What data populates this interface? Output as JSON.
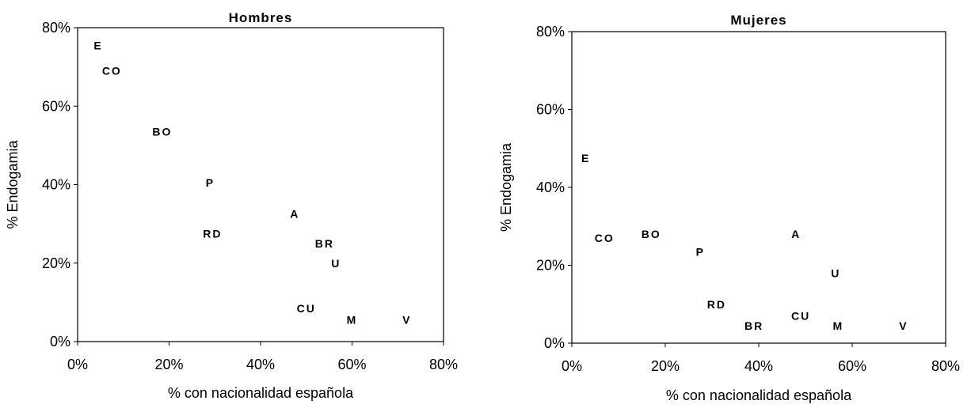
{
  "chart_data": [
    {
      "type": "scatter",
      "title": "Hombres",
      "xlabel": "% con nacionalidad española",
      "ylabel": "% Endogamia",
      "xlim": [
        0,
        80
      ],
      "ylim": [
        0,
        80
      ],
      "xticks": [
        "0%",
        "20%",
        "40%",
        "60%",
        "80%"
      ],
      "yticks": [
        "0%",
        "20%",
        "40%",
        "60%",
        "80%"
      ],
      "grid": false,
      "points": [
        {
          "label": "E",
          "x": 4.5,
          "y": 75.5
        },
        {
          "label": "CO",
          "x": 7.5,
          "y": 69
        },
        {
          "label": "BO",
          "x": 18.5,
          "y": 53.5
        },
        {
          "label": "P",
          "x": 29,
          "y": 40.5
        },
        {
          "label": "A",
          "x": 47.5,
          "y": 32.5
        },
        {
          "label": "RD",
          "x": 29.5,
          "y": 27.5
        },
        {
          "label": "BR",
          "x": 54,
          "y": 25
        },
        {
          "label": "U",
          "x": 56.5,
          "y": 20
        },
        {
          "label": "CU",
          "x": 50,
          "y": 8.5
        },
        {
          "label": "M",
          "x": 60,
          "y": 5.5
        },
        {
          "label": "V",
          "x": 72,
          "y": 5.5
        }
      ]
    },
    {
      "type": "scatter",
      "title": "Mujeres",
      "xlabel": "% con nacionalidad española",
      "ylabel": "% Endogamia",
      "xlim": [
        0,
        80
      ],
      "ylim": [
        0,
        80
      ],
      "xticks": [
        "0%",
        "20%",
        "40%",
        "60%",
        "80%"
      ],
      "yticks": [
        "0%",
        "20%",
        "40%",
        "60%",
        "80%"
      ],
      "grid": false,
      "points": [
        {
          "label": "E",
          "x": 3,
          "y": 47.5
        },
        {
          "label": "CO",
          "x": 7,
          "y": 27
        },
        {
          "label": "BO",
          "x": 17,
          "y": 28
        },
        {
          "label": "P",
          "x": 27.5,
          "y": 23.5
        },
        {
          "label": "A",
          "x": 48,
          "y": 28
        },
        {
          "label": "U",
          "x": 56.5,
          "y": 18
        },
        {
          "label": "RD",
          "x": 31,
          "y": 10
        },
        {
          "label": "BR",
          "x": 39,
          "y": 4.5
        },
        {
          "label": "CU",
          "x": 49,
          "y": 7
        },
        {
          "label": "M",
          "x": 57,
          "y": 4.5
        },
        {
          "label": "V",
          "x": 71,
          "y": 4.5
        }
      ]
    }
  ]
}
